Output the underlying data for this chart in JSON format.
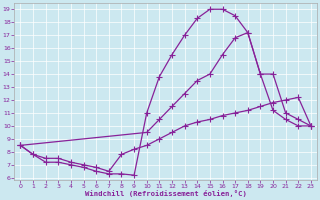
{
  "xlabel": "Windchill (Refroidissement éolien,°C)",
  "bg_color": "#cce8f0",
  "line_color": "#882299",
  "xlim": [
    -0.5,
    23.5
  ],
  "ylim": [
    5.8,
    19.5
  ],
  "xticks": [
    0,
    1,
    2,
    3,
    4,
    5,
    6,
    7,
    8,
    9,
    10,
    11,
    12,
    13,
    14,
    15,
    16,
    17,
    18,
    19,
    20,
    21,
    22,
    23
  ],
  "yticks": [
    6,
    7,
    8,
    9,
    10,
    11,
    12,
    13,
    14,
    15,
    16,
    17,
    18,
    19
  ],
  "line1_x": [
    0,
    1,
    2,
    3,
    4,
    5,
    6,
    7,
    8,
    9,
    10,
    11,
    12,
    13,
    14,
    15,
    16,
    17,
    18,
    19,
    20,
    21,
    22,
    23
  ],
  "line1_y": [
    8.5,
    7.8,
    7.2,
    7.2,
    7.0,
    6.8,
    6.5,
    6.3,
    6.3,
    6.2,
    11.0,
    13.8,
    15.5,
    17.0,
    18.3,
    19.0,
    19.0,
    18.5,
    17.2,
    14.0,
    11.2,
    10.5,
    10.0,
    10.0
  ],
  "line2_x": [
    0,
    10,
    11,
    12,
    13,
    14,
    15,
    16,
    17,
    18,
    19,
    20,
    21,
    22,
    23
  ],
  "line2_y": [
    8.5,
    9.5,
    10.5,
    11.5,
    12.5,
    13.5,
    14.0,
    15.5,
    16.8,
    17.2,
    14.0,
    14.0,
    11.0,
    10.5,
    10.0
  ],
  "line3_x": [
    0,
    1,
    2,
    3,
    4,
    5,
    6,
    7,
    8,
    9,
    10,
    11,
    12,
    13,
    14,
    15,
    16,
    17,
    18,
    19,
    20,
    21,
    22,
    23
  ],
  "line3_y": [
    8.5,
    7.8,
    7.5,
    7.5,
    7.2,
    7.0,
    6.8,
    6.5,
    7.8,
    8.2,
    8.5,
    9.0,
    9.5,
    10.0,
    10.3,
    10.5,
    10.8,
    11.0,
    11.2,
    11.5,
    11.8,
    12.0,
    12.2,
    10.0
  ]
}
